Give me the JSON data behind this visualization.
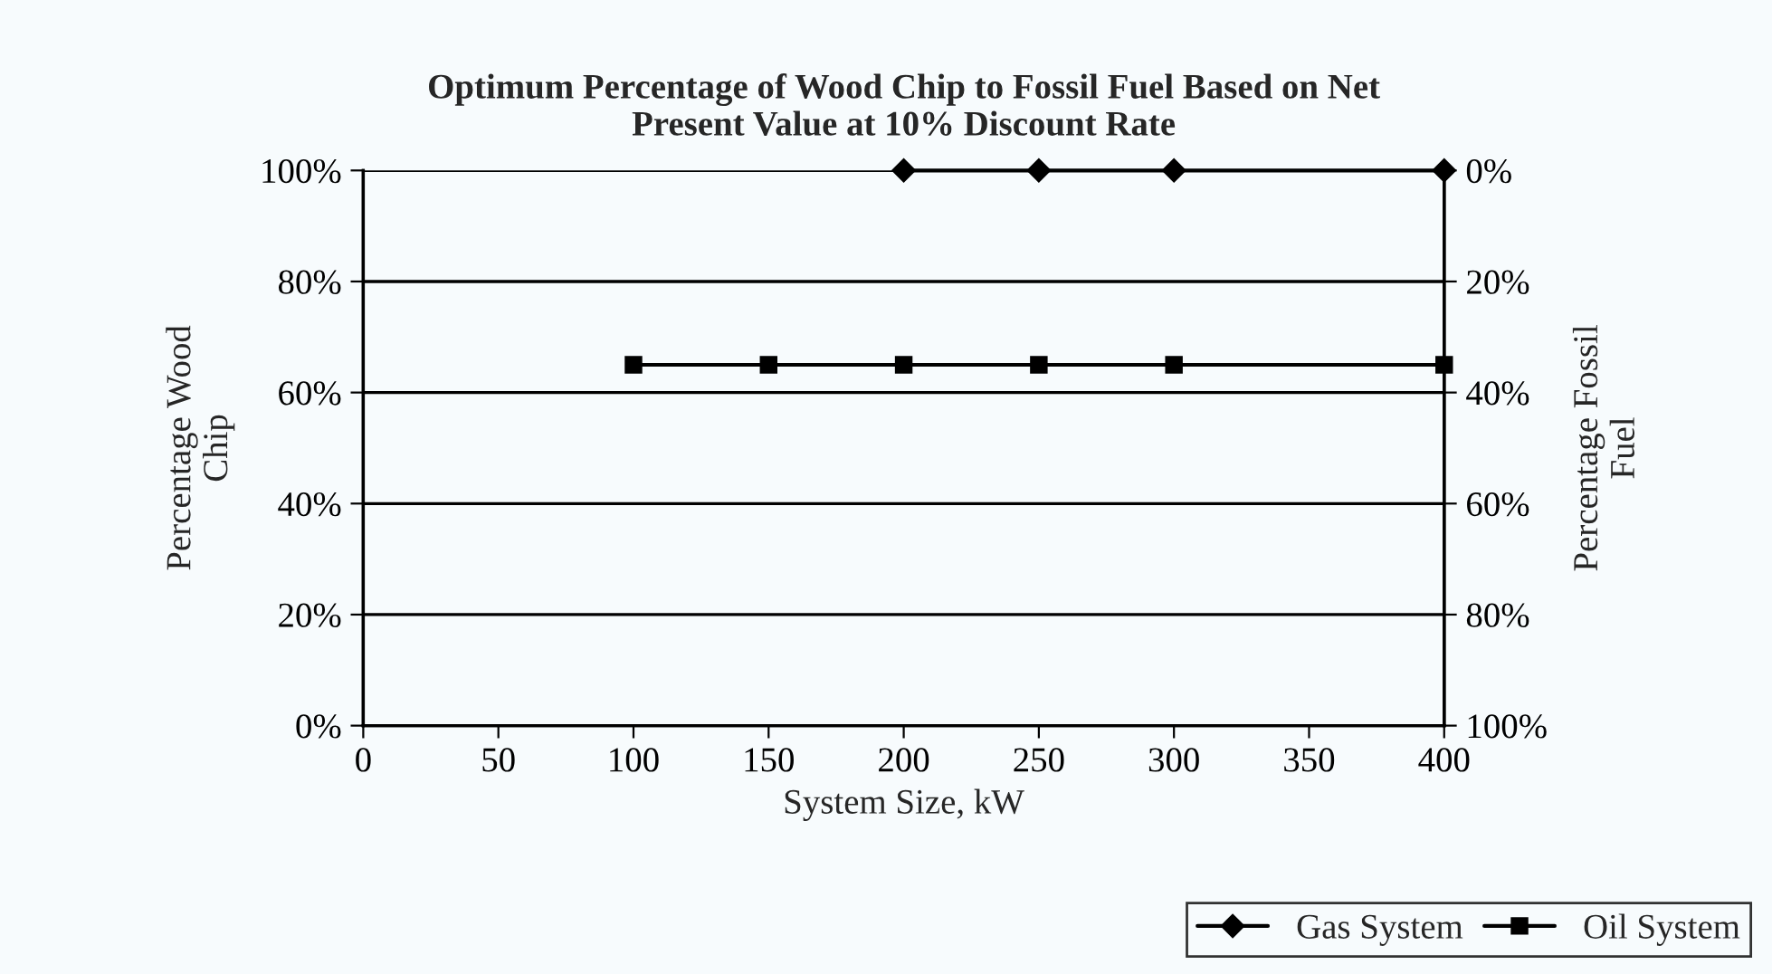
{
  "chart_data": {
    "type": "line",
    "title": "Optimum Percentage of Wood Chip to Fossil Fuel Based on Net\nPresent Value at 10% Discount Rate",
    "xlabel": "System Size, kW",
    "ylabel": "Percentage Wood\nChip",
    "y2label": "Percentage Fossil\nFuel",
    "categories": [
      "0",
      "50",
      "100",
      "150",
      "200",
      "250",
      "300",
      "350",
      "400"
    ],
    "series": [
      {
        "name": "Gas System",
        "color": "#000000",
        "marker": "diamond",
        "values": [
          null,
          null,
          null,
          null,
          100,
          100,
          100,
          null,
          100
        ]
      },
      {
        "name": "Oil System",
        "color": "#000000",
        "marker": "square",
        "values": [
          null,
          null,
          65,
          65,
          65,
          65,
          65,
          null,
          65
        ]
      }
    ],
    "ylim": [
      0,
      100
    ],
    "yticks": [
      {
        "value": 0,
        "label": "0%"
      },
      {
        "value": 20,
        "label": "20%"
      },
      {
        "value": 40,
        "label": "40%"
      },
      {
        "value": 60,
        "label": "60%"
      },
      {
        "value": 80,
        "label": "80%"
      },
      {
        "value": 100,
        "label": "100%"
      }
    ],
    "y2lim": [
      100,
      0
    ],
    "y2ticks": [
      {
        "value": 0,
        "label": "0%"
      },
      {
        "value": 20,
        "label": "20%"
      },
      {
        "value": 40,
        "label": "40%"
      },
      {
        "value": 60,
        "label": "60%"
      },
      {
        "value": 80,
        "label": "80%"
      },
      {
        "value": 100,
        "label": "100%"
      }
    ],
    "grid": "y",
    "legend": "bottom right",
    "line_style": "solid"
  }
}
